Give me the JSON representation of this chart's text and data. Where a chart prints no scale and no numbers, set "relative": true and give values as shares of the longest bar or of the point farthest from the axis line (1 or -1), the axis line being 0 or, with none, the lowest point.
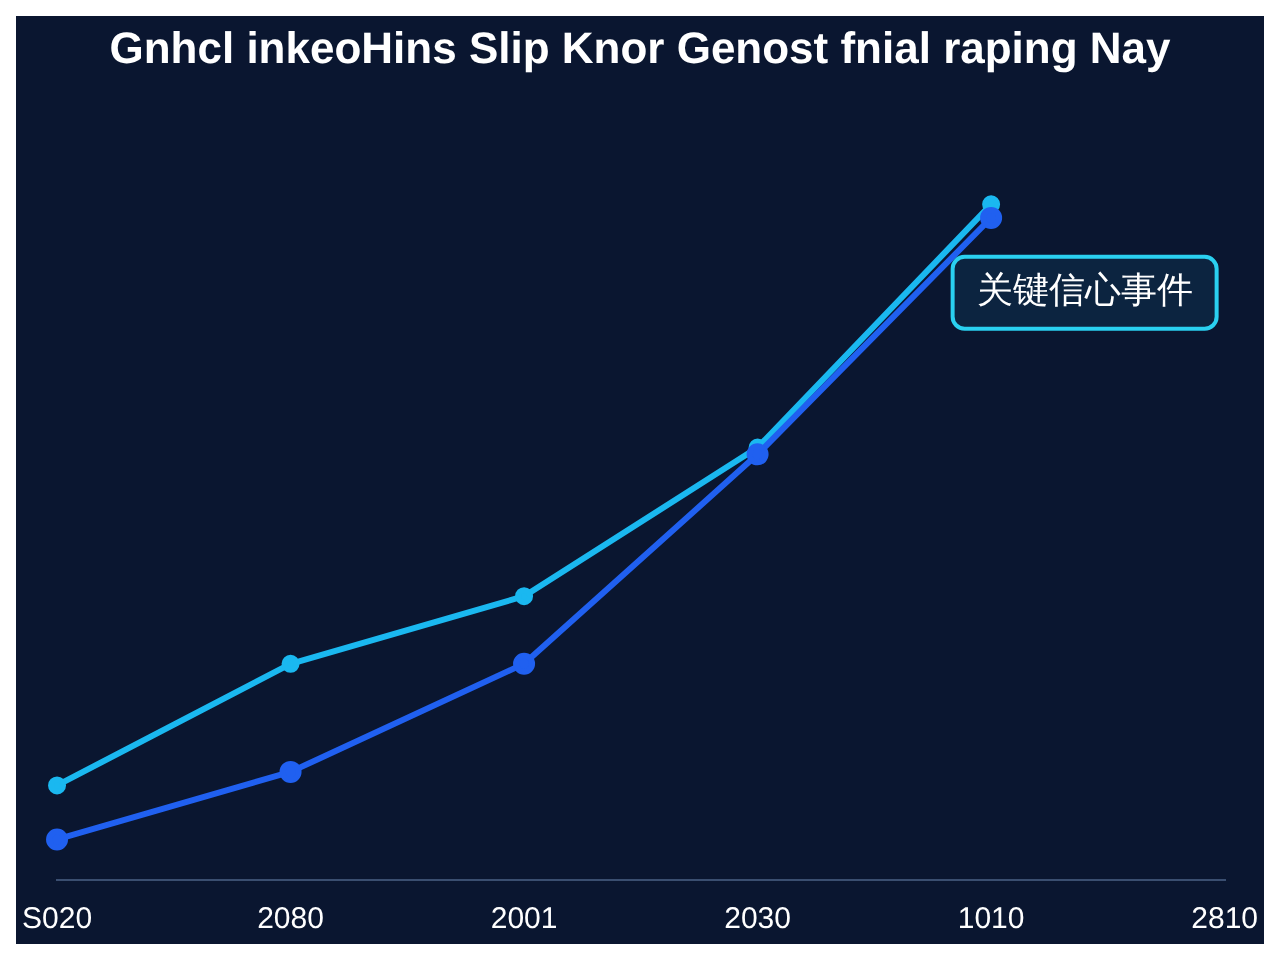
{
  "chart_data": {
    "type": "line",
    "title": "Gnhcl inkeoHins Slip Knor Genost fnial raping Nay",
    "categories": [
      "S020",
      "2080",
      "2001",
      "2030",
      "1010",
      "2810"
    ],
    "relative": true,
    "marker": "circle",
    "line_style": "solid",
    "annotations": [
      "关键信心事件"
    ],
    "series": [
      {
        "color": "#1ab8f0",
        "values": [
          0.14,
          0.32,
          0.42,
          0.64,
          1.0,
          null
        ]
      },
      {
        "color": "#2060f0",
        "values": [
          0.06,
          0.16,
          0.32,
          0.63,
          0.98,
          null
        ]
      }
    ]
  }
}
